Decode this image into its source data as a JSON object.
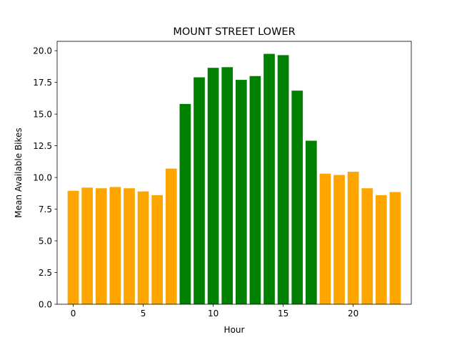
{
  "chart_data": {
    "type": "bar",
    "title": "MOUNT STREET LOWER",
    "xlabel": "Hour",
    "ylabel": "Mean Available Bikes",
    "x": [
      0,
      1,
      2,
      3,
      4,
      5,
      6,
      7,
      8,
      9,
      10,
      11,
      12,
      13,
      14,
      15,
      16,
      17,
      18,
      19,
      20,
      21,
      22,
      23
    ],
    "values": [
      8.95,
      9.2,
      9.15,
      9.25,
      9.15,
      8.9,
      8.6,
      10.7,
      15.8,
      17.9,
      18.65,
      18.7,
      17.7,
      18.0,
      19.75,
      19.65,
      16.85,
      12.9,
      10.3,
      10.2,
      10.45,
      9.15,
      8.6,
      8.85
    ],
    "colors": [
      "#FFA500",
      "#FFA500",
      "#FFA500",
      "#FFA500",
      "#FFA500",
      "#FFA500",
      "#FFA500",
      "#FFA500",
      "#008000",
      "#008000",
      "#008000",
      "#008000",
      "#008000",
      "#008000",
      "#008000",
      "#008000",
      "#008000",
      "#008000",
      "#FFA500",
      "#FFA500",
      "#FFA500",
      "#FFA500",
      "#FFA500",
      "#FFA500"
    ],
    "xlim": [
      -1.15,
      24.15
    ],
    "ylim": [
      0,
      20.74
    ],
    "xticks": [
      0,
      5,
      10,
      15,
      20
    ],
    "xtick_labels": [
      "0",
      "5",
      "10",
      "15",
      "20"
    ],
    "yticks": [
      0,
      2.5,
      5,
      7.5,
      10,
      12.5,
      15,
      17.5,
      20
    ],
    "ytick_labels": [
      "0.0",
      "2.5",
      "5.0",
      "7.5",
      "10.0",
      "12.5",
      "15.0",
      "17.5",
      "20.0"
    ],
    "grid": false,
    "legend": "none"
  }
}
